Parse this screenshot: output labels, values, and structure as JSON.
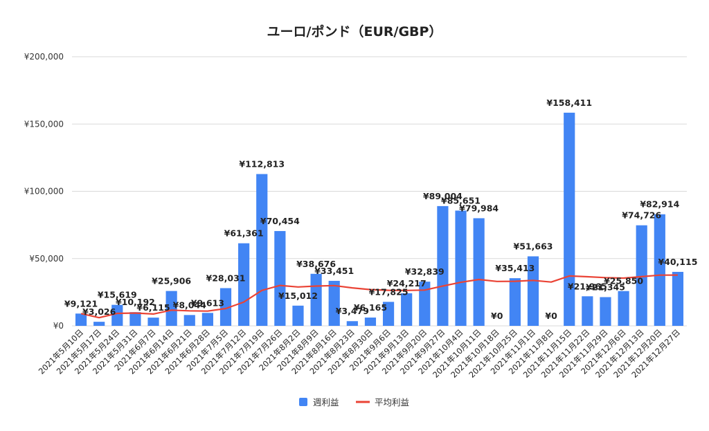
{
  "chart_data": {
    "type": "bar",
    "title": "ユーロ/ポンド（EUR/GBP）",
    "xlabel": "",
    "ylabel": "",
    "ylim": [
      0,
      200000
    ],
    "yticks": [
      "¥0",
      "¥50,000",
      "¥100,000",
      "¥150,000",
      "¥200,000"
    ],
    "ytick_values": [
      0,
      50000,
      100000,
      150000,
      200000
    ],
    "grid": true,
    "legend_position": "bottom",
    "categories": [
      "2021年5月10日",
      "2021年5月17日",
      "2021年5月24日",
      "2021年5月31日",
      "2021年6月7日",
      "2021年6月14日",
      "2021年6月21日",
      "2021年6月28日",
      "2021年7月5日",
      "2021年7月12日",
      "2021年7月19日",
      "2021年7月26日",
      "2021年8月2日",
      "2021年8月9日",
      "2021年8月16日",
      "2021年8月23日",
      "2021年8月30日",
      "2021年9月6日",
      "2021年9月13日",
      "2021年9月20日",
      "2021年9月27日",
      "2021年10月4日",
      "2021年10月11日",
      "2021年10月18日",
      "2021年10月25日",
      "2021年11月1日",
      "2021年11月8日",
      "2021年11月15日",
      "2021年11月22日",
      "2021年11月29日",
      "2021年12月6日",
      "2021年12月13日",
      "2021年12月20日",
      "2021年12月27日"
    ],
    "series": [
      {
        "name": "週利益",
        "kind": "bar",
        "color": "#4285f4",
        "values": [
          9121,
          3026,
          15619,
          10192,
          6115,
          25906,
          8044,
          9613,
          28031,
          61361,
          112813,
          70454,
          15012,
          38676,
          33451,
          3479,
          6165,
          17825,
          24217,
          32839,
          89004,
          85651,
          79984,
          0,
          35413,
          51663,
          0,
          158411,
          21965,
          21345,
          25850,
          74726,
          82914,
          40115
        ],
        "labels": [
          "¥9,121",
          "¥3,026",
          "¥15,619",
          "¥10,192",
          "¥6,115",
          "¥25,906",
          "¥8,044",
          "¥9,613",
          "¥28,031",
          "¥61,361",
          "¥112,813",
          "¥70,454",
          "¥15,012",
          "¥38,676",
          "¥33,451",
          "¥3,479",
          "¥6,165",
          "¥17,825",
          "¥24,217",
          "¥32,839",
          "¥89,004",
          "¥85,651",
          "¥79,984",
          "¥0",
          "¥35,413",
          "¥51,663",
          "¥0",
          "¥158,411",
          "¥21,965",
          "¥21,345",
          "¥25,850",
          "¥74,726",
          "¥82,914",
          "¥40,115"
        ]
      },
      {
        "name": "平均利益",
        "kind": "line",
        "color": "#ea4335",
        "values": [
          9121,
          6074,
          9255,
          9490,
          8815,
          11664,
          11146,
          10954,
          12851,
          17702,
          26348,
          30029,
          28874,
          29574,
          29899,
          28248,
          26949,
          26442,
          26330,
          26598,
          29567,
          32346,
          34428,
          32994,
          33090,
          33801,
          32550,
          37045,
          36523,
          35816,
          35495,
          36534,
          37663,
          37735
        ]
      }
    ]
  }
}
